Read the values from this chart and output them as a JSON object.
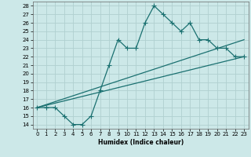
{
  "xlabel": "Humidex (Indice chaleur)",
  "background_color": "#cce8e8",
  "grid_color": "#b0d0d0",
  "line_color": "#1a7070",
  "xlim": [
    -0.5,
    23.5
  ],
  "ylim": [
    13.5,
    28.5
  ],
  "xticks": [
    0,
    1,
    2,
    3,
    4,
    5,
    6,
    7,
    8,
    9,
    10,
    11,
    12,
    13,
    14,
    15,
    16,
    17,
    18,
    19,
    20,
    21,
    22,
    23
  ],
  "yticks": [
    14,
    15,
    16,
    17,
    18,
    19,
    20,
    21,
    22,
    23,
    24,
    25,
    26,
    27,
    28
  ],
  "line1_x": [
    0,
    1,
    2,
    3,
    4,
    5,
    6,
    7,
    8,
    9,
    10,
    11,
    12,
    13,
    14,
    15,
    16,
    17,
    18,
    19,
    20,
    21,
    22,
    23
  ],
  "line1_y": [
    16,
    16,
    16,
    15,
    14,
    14,
    15,
    18,
    21,
    24,
    23,
    23,
    26,
    28,
    27,
    26,
    25,
    26,
    24,
    24,
    23,
    23,
    22,
    22
  ],
  "line2_x": [
    0,
    23
  ],
  "line2_y": [
    16,
    22
  ],
  "line3_x": [
    0,
    23
  ],
  "line3_y": [
    16,
    24
  ]
}
